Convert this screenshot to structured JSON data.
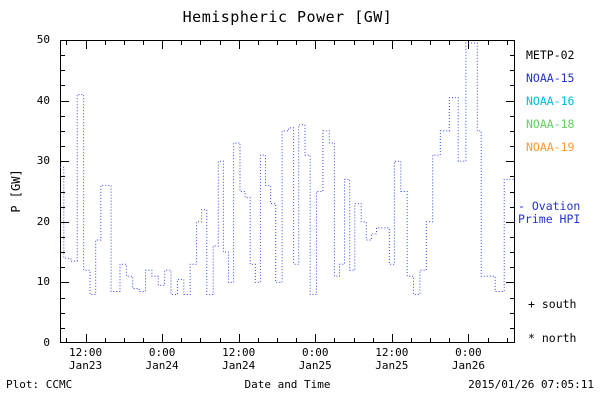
{
  "chart_data": {
    "type": "line",
    "line_style": "dotted-step",
    "title": "Hemispheric Power [GW]",
    "xlabel": "Date and Time",
    "ylabel": "P [GW]",
    "ylim": [
      0,
      50
    ],
    "xlim": [
      0,
      71.3
    ],
    "x_unit": "hours",
    "grid": false,
    "legend_position": "right-outside",
    "y_ticks": [
      0,
      10,
      20,
      30,
      40,
      50
    ],
    "y_minor_step": 2.5,
    "x_minor_step": 3,
    "x_ticks": [
      {
        "t": 4,
        "time": "12:00",
        "date": "Jan23"
      },
      {
        "t": 16,
        "time": "0:00",
        "date": "Jan24"
      },
      {
        "t": 28,
        "time": "12:00",
        "date": "Jan24"
      },
      {
        "t": 40,
        "time": "0:00",
        "date": "Jan25"
      },
      {
        "t": 52,
        "time": "12:00",
        "date": "Jan25"
      },
      {
        "t": 64,
        "time": "0:00",
        "date": "Jan26"
      }
    ],
    "series": [
      {
        "name": "Ovation Prime HPI",
        "color": "#3344dd",
        "steps": [
          [
            0.0,
            29
          ],
          [
            0.6,
            14
          ],
          [
            1.7,
            13.5
          ],
          [
            2.7,
            41
          ],
          [
            3.7,
            12
          ],
          [
            4.7,
            8
          ],
          [
            5.6,
            17
          ],
          [
            6.4,
            26
          ],
          [
            8.0,
            8.5
          ],
          [
            9.4,
            13
          ],
          [
            10.4,
            11
          ],
          [
            11.4,
            9
          ],
          [
            12.4,
            8.5
          ],
          [
            13.4,
            12
          ],
          [
            14.4,
            11
          ],
          [
            15.4,
            9.5
          ],
          [
            16.4,
            12
          ],
          [
            17.4,
            8
          ],
          [
            18.4,
            10.5
          ],
          [
            19.4,
            8
          ],
          [
            20.4,
            13
          ],
          [
            21.4,
            20
          ],
          [
            22.2,
            22
          ],
          [
            23.0,
            8
          ],
          [
            24.0,
            16
          ],
          [
            24.8,
            30
          ],
          [
            25.6,
            15
          ],
          [
            26.4,
            10
          ],
          [
            27.2,
            33
          ],
          [
            28.2,
            25
          ],
          [
            29.0,
            24
          ],
          [
            29.8,
            13
          ],
          [
            30.6,
            10
          ],
          [
            31.4,
            31
          ],
          [
            32.2,
            26
          ],
          [
            33.0,
            23
          ],
          [
            33.8,
            10
          ],
          [
            34.8,
            35
          ],
          [
            35.8,
            35.5
          ],
          [
            36.6,
            13
          ],
          [
            37.4,
            36
          ],
          [
            38.4,
            31
          ],
          [
            39.2,
            8
          ],
          [
            40.2,
            25
          ],
          [
            41.2,
            35
          ],
          [
            42.2,
            33
          ],
          [
            43.0,
            11
          ],
          [
            43.8,
            13
          ],
          [
            44.6,
            27
          ],
          [
            45.4,
            12
          ],
          [
            46.2,
            23
          ],
          [
            47.2,
            20
          ],
          [
            48.0,
            17
          ],
          [
            48.8,
            18
          ],
          [
            49.6,
            19
          ],
          [
            50.6,
            19
          ],
          [
            51.6,
            13
          ],
          [
            52.4,
            30
          ],
          [
            53.4,
            25
          ],
          [
            54.4,
            11
          ],
          [
            55.4,
            8
          ],
          [
            56.4,
            12
          ],
          [
            57.4,
            20
          ],
          [
            58.4,
            31
          ],
          [
            59.6,
            35
          ],
          [
            61.0,
            40.5
          ],
          [
            62.4,
            30
          ],
          [
            63.6,
            49.5
          ],
          [
            65.4,
            35
          ],
          [
            66.0,
            11
          ],
          [
            67.2,
            11
          ],
          [
            68.2,
            8.5
          ],
          [
            69.6,
            27
          ]
        ]
      }
    ]
  },
  "legend": {
    "items": [
      {
        "label": "METP-02",
        "color": "#000000"
      },
      {
        "label": "NOAA-15",
        "color": "#2233cc"
      },
      {
        "label": "NOAA-16",
        "color": "#00bbdd"
      },
      {
        "label": "NOAA-18",
        "color": "#66cc66"
      },
      {
        "label": "NOAA-19",
        "color": "#ff9933"
      }
    ]
  },
  "annotations": {
    "color": "#2233cc",
    "ovation_line1": "- Ovation",
    "ovation_line2": "Prime HPI",
    "south_marker": "+ south",
    "north_marker": "* north"
  },
  "footer": {
    "plot_credit": "Plot: CCMC",
    "timestamp": "2015/01/26 07:05:11"
  }
}
